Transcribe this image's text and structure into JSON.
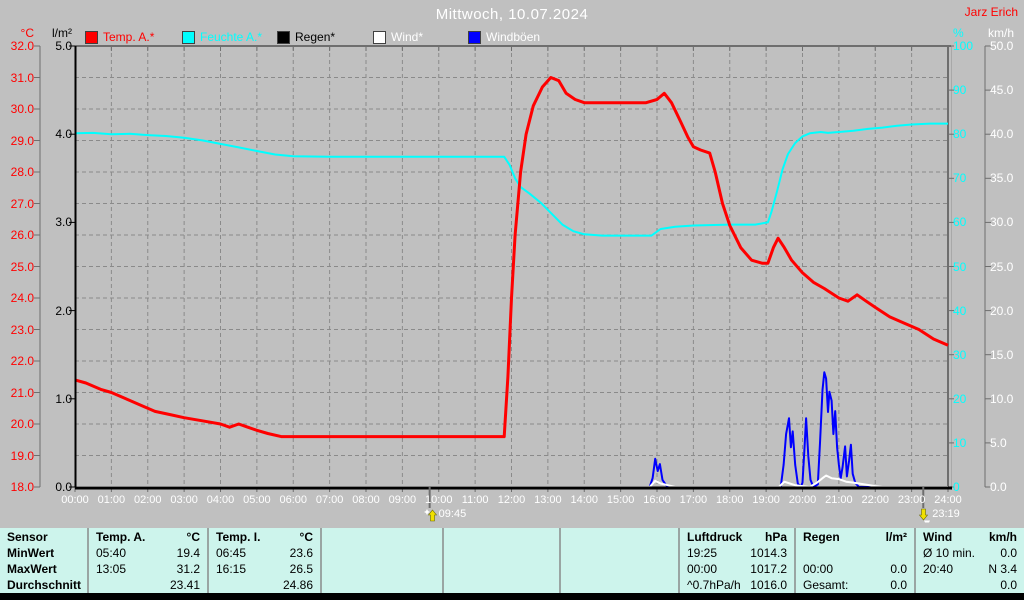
{
  "header": {
    "title": "Mittwoch, 10.07.2024",
    "station": "Jarz Erich"
  },
  "colors": {
    "background": "#c0c0c0",
    "grid": "#8a8a8a",
    "axis_dark": "#000000",
    "frame_gray": "#6e6e6e",
    "x_text": "#ffffff",
    "title_text": "#ffffff",
    "station_text": "#ff0000",
    "table_bg": "#cdf4ec",
    "table_divider": "#9aa5a3"
  },
  "chart_data": {
    "type": "line",
    "title": "Mittwoch, 10.07.2024",
    "grid": "dashed, hourly vertical + 1°C horizontal",
    "x_axis": {
      "min": 0,
      "max": 24,
      "labels": [
        "00:00",
        "01:00",
        "02:00",
        "03:00",
        "04:00",
        "05:00",
        "06:00",
        "07:00",
        "08:00",
        "09:00",
        "10:00",
        "11:00",
        "12:00",
        "13:00",
        "14:00",
        "15:00",
        "16:00",
        "17:00",
        "18:00",
        "19:00",
        "20:00",
        "21:00",
        "22:00",
        "23:00",
        "24:00"
      ]
    },
    "axes": {
      "temp": {
        "unit": "°C",
        "color": "#ff0000",
        "min": 18,
        "max": 32,
        "ticks": [
          "32.0",
          "31.0",
          "30.0",
          "29.0",
          "28.0",
          "27.0",
          "26.0",
          "25.0",
          "24.0",
          "23.0",
          "22.0",
          "21.0",
          "20.0",
          "19.0",
          "18.0"
        ]
      },
      "rain": {
        "unit": "l/m²",
        "color": "#000000",
        "min": 0,
        "max": 5,
        "ticks": [
          "5.0",
          "4.0",
          "3.0",
          "2.0",
          "1.0",
          "0.0"
        ]
      },
      "humidity": {
        "unit": "%",
        "color": "#00ffff",
        "min": 0,
        "max": 100,
        "ticks": [
          "100",
          "90",
          "80",
          "70",
          "60",
          "50",
          "40",
          "30",
          "20",
          "10",
          "0"
        ]
      },
      "wind": {
        "unit": "km/h",
        "color": "#ffffff",
        "min": 0,
        "max": 50,
        "ticks": [
          "50.0",
          "45.0",
          "40.0",
          "35.0",
          "30.0",
          "25.0",
          "20.0",
          "15.0",
          "10.0",
          "5.0",
          "0.0"
        ]
      }
    },
    "legend": [
      {
        "label": "Temp. A.*",
        "swatch": "#ff0000",
        "label_color": "#ff0000"
      },
      {
        "label": "Feuchte A.*",
        "swatch": "#00ffff",
        "label_color": "#00ffff"
      },
      {
        "label": "Regen*",
        "swatch": "#000000",
        "label_color": "#000000"
      },
      {
        "label": "Wind*",
        "swatch": "#ffffff",
        "label_color": "#ffffff"
      },
      {
        "label": "Windböen",
        "swatch": "#0000ff",
        "label_color": "#ffffff"
      }
    ],
    "markers": [
      {
        "time": "09:45",
        "hour": 9.75,
        "icon": "up-arrow"
      },
      {
        "time": "23:19",
        "hour": 23.32,
        "icon": "down-arrow"
      }
    ],
    "series": [
      {
        "name": "Regen",
        "axis": "rain",
        "color": "#000000",
        "width": 1,
        "points": [
          [
            0,
            0
          ],
          [
            24,
            0
          ]
        ]
      },
      {
        "name": "Windböen",
        "axis": "wind",
        "color": "#0000ff",
        "width": 2,
        "points": [
          [
            0,
            0
          ],
          [
            15.8,
            0
          ],
          [
            15.88,
            1.0
          ],
          [
            15.95,
            3.2
          ],
          [
            16.02,
            1.8
          ],
          [
            16.08,
            2.6
          ],
          [
            16.15,
            0.8
          ],
          [
            16.25,
            0.2
          ],
          [
            16.35,
            0
          ],
          [
            19.4,
            0
          ],
          [
            19.48,
            2.5
          ],
          [
            19.55,
            6.0
          ],
          [
            19.63,
            7.8
          ],
          [
            19.68,
            4.5
          ],
          [
            19.73,
            6.3
          ],
          [
            19.8,
            2.5
          ],
          [
            19.87,
            0.4
          ],
          [
            19.95,
            0
          ],
          [
            20.0,
            0.5
          ],
          [
            20.05,
            4.0
          ],
          [
            20.1,
            7.8
          ],
          [
            20.16,
            3.5
          ],
          [
            20.22,
            0.8
          ],
          [
            20.3,
            0
          ],
          [
            20.42,
            0.3
          ],
          [
            20.48,
            5.0
          ],
          [
            20.55,
            11.0
          ],
          [
            20.6,
            13.0
          ],
          [
            20.65,
            12.3
          ],
          [
            20.7,
            8.5
          ],
          [
            20.74,
            10.8
          ],
          [
            20.8,
            9.8
          ],
          [
            20.85,
            6.0
          ],
          [
            20.9,
            8.6
          ],
          [
            20.95,
            4.5
          ],
          [
            21.0,
            2.5
          ],
          [
            21.05,
            1.0
          ],
          [
            21.1,
            2.2
          ],
          [
            21.17,
            4.6
          ],
          [
            21.22,
            1.2
          ],
          [
            21.28,
            3.0
          ],
          [
            21.33,
            4.8
          ],
          [
            21.38,
            1.5
          ],
          [
            21.45,
            0.5
          ],
          [
            21.55,
            0
          ],
          [
            24,
            0
          ]
        ]
      },
      {
        "name": "Wind",
        "axis": "wind",
        "color": "#ffffff",
        "width": 2,
        "points": [
          [
            0,
            0
          ],
          [
            15.8,
            0
          ],
          [
            15.95,
            0.7
          ],
          [
            16.1,
            0.4
          ],
          [
            16.3,
            0.2
          ],
          [
            16.5,
            0
          ],
          [
            19.35,
            0
          ],
          [
            19.5,
            0.6
          ],
          [
            19.65,
            0.4
          ],
          [
            19.8,
            0.2
          ],
          [
            20.0,
            0.1
          ],
          [
            20.2,
            0
          ],
          [
            20.4,
            0.5
          ],
          [
            20.55,
            1.0
          ],
          [
            20.65,
            1.3
          ],
          [
            20.8,
            1.0
          ],
          [
            21.0,
            0.9
          ],
          [
            21.2,
            0.6
          ],
          [
            21.4,
            0.5
          ],
          [
            21.7,
            0.3
          ],
          [
            22.0,
            0.1
          ],
          [
            22.2,
            0
          ],
          [
            24,
            0
          ]
        ]
      },
      {
        "name": "Feuchte A.",
        "axis": "humidity",
        "color": "#00ffff",
        "width": 2,
        "points": [
          [
            0,
            80.2
          ],
          [
            0.5,
            80.3
          ],
          [
            1,
            80.0
          ],
          [
            1.5,
            80.1
          ],
          [
            2,
            79.8
          ],
          [
            2.5,
            79.6
          ],
          [
            3,
            79.2
          ],
          [
            3.5,
            78.6
          ],
          [
            4,
            77.8
          ],
          [
            4.5,
            77.0
          ],
          [
            5,
            76.2
          ],
          [
            5.5,
            75.4
          ],
          [
            6,
            75.0
          ],
          [
            7,
            74.9
          ],
          [
            8,
            74.9
          ],
          [
            9,
            74.9
          ],
          [
            10,
            74.9
          ],
          [
            11,
            74.9
          ],
          [
            11.8,
            74.9
          ],
          [
            11.95,
            73.0
          ],
          [
            12.1,
            70.0
          ],
          [
            12.25,
            68.0
          ],
          [
            12.5,
            66.5
          ],
          [
            12.8,
            64.5
          ],
          [
            13.1,
            62.0
          ],
          [
            13.4,
            59.5
          ],
          [
            13.7,
            58.0
          ],
          [
            14,
            57.3
          ],
          [
            14.5,
            57.0
          ],
          [
            15,
            57.0
          ],
          [
            15.85,
            57.0
          ],
          [
            16.1,
            58.5
          ],
          [
            16.5,
            59.0
          ],
          [
            17,
            59.3
          ],
          [
            18,
            59.5
          ],
          [
            18.7,
            59.5
          ],
          [
            19.05,
            60.0
          ],
          [
            19.15,
            62.5
          ],
          [
            19.3,
            67.0
          ],
          [
            19.45,
            72.0
          ],
          [
            19.6,
            75.5
          ],
          [
            19.8,
            78.0
          ],
          [
            20,
            79.5
          ],
          [
            20.2,
            80.2
          ],
          [
            20.5,
            80.5
          ],
          [
            20.7,
            80.3
          ],
          [
            21,
            80.5
          ],
          [
            21.4,
            80.8
          ],
          [
            21.8,
            81.2
          ],
          [
            22.2,
            81.5
          ],
          [
            22.6,
            81.9
          ],
          [
            23,
            82.2
          ],
          [
            23.5,
            82.4
          ],
          [
            24,
            82.4
          ]
        ]
      },
      {
        "name": "Temp. A.",
        "axis": "temp",
        "color": "#ff0000",
        "width": 3,
        "points": [
          [
            0,
            21.4
          ],
          [
            0.3,
            21.3
          ],
          [
            0.7,
            21.1
          ],
          [
            1,
            21.0
          ],
          [
            1.4,
            20.8
          ],
          [
            1.8,
            20.6
          ],
          [
            2.2,
            20.4
          ],
          [
            2.6,
            20.3
          ],
          [
            3,
            20.2
          ],
          [
            3.5,
            20.1
          ],
          [
            4,
            20.0
          ],
          [
            4.25,
            19.9
          ],
          [
            4.5,
            20.0
          ],
          [
            4.75,
            19.9
          ],
          [
            5,
            19.8
          ],
          [
            5.3,
            19.7
          ],
          [
            5.67,
            19.6
          ],
          [
            6.5,
            19.6
          ],
          [
            8,
            19.6
          ],
          [
            10,
            19.6
          ],
          [
            11.5,
            19.6
          ],
          [
            11.8,
            19.6
          ],
          [
            11.9,
            21.5
          ],
          [
            12,
            24.0
          ],
          [
            12.1,
            26.0
          ],
          [
            12.25,
            28.0
          ],
          [
            12.4,
            29.2
          ],
          [
            12.6,
            30.1
          ],
          [
            12.85,
            30.7
          ],
          [
            13.08,
            31.0
          ],
          [
            13.3,
            30.9
          ],
          [
            13.5,
            30.5
          ],
          [
            13.75,
            30.3
          ],
          [
            14,
            30.2
          ],
          [
            15,
            30.2
          ],
          [
            15.7,
            30.2
          ],
          [
            16,
            30.3
          ],
          [
            16.2,
            30.5
          ],
          [
            16.4,
            30.2
          ],
          [
            16.65,
            29.6
          ],
          [
            16.85,
            29.1
          ],
          [
            17,
            28.8
          ],
          [
            17.2,
            28.7
          ],
          [
            17.45,
            28.6
          ],
          [
            17.6,
            28.0
          ],
          [
            17.8,
            27.0
          ],
          [
            18,
            26.3
          ],
          [
            18.3,
            25.6
          ],
          [
            18.6,
            25.2
          ],
          [
            18.9,
            25.1
          ],
          [
            19.05,
            25.1
          ],
          [
            19.2,
            25.6
          ],
          [
            19.33,
            25.9
          ],
          [
            19.5,
            25.6
          ],
          [
            19.7,
            25.2
          ],
          [
            20,
            24.8
          ],
          [
            20.3,
            24.5
          ],
          [
            20.6,
            24.3
          ],
          [
            21,
            24.0
          ],
          [
            21.25,
            23.9
          ],
          [
            21.5,
            24.1
          ],
          [
            21.75,
            23.9
          ],
          [
            22,
            23.7
          ],
          [
            22.4,
            23.4
          ],
          [
            22.8,
            23.2
          ],
          [
            23.2,
            23.0
          ],
          [
            23.6,
            22.7
          ],
          [
            24,
            22.5
          ]
        ]
      }
    ]
  },
  "table": {
    "row_labels": [
      "Sensor",
      "MinWert",
      "MaxWert",
      "Durchschnitt"
    ],
    "columns": [
      {
        "name": "Temp. A.",
        "unit": "°C",
        "rows": [
          [
            "05:40",
            "19.4"
          ],
          [
            "13:05",
            "31.2"
          ],
          [
            "",
            "23.41"
          ]
        ]
      },
      {
        "name": "Temp. I.",
        "unit": "°C",
        "rows": [
          [
            "06:45",
            "23.6"
          ],
          [
            "16:15",
            "26.5"
          ],
          [
            "",
            "24.86"
          ]
        ]
      },
      {
        "name": "",
        "unit": "",
        "rows": [
          [
            "",
            ""
          ],
          [
            "",
            ""
          ],
          [
            "",
            ""
          ]
        ]
      },
      {
        "name": "",
        "unit": "",
        "rows": [
          [
            "",
            ""
          ],
          [
            "",
            ""
          ],
          [
            "",
            ""
          ]
        ]
      },
      {
        "name": "",
        "unit": "",
        "rows": [
          [
            "",
            ""
          ],
          [
            "",
            ""
          ],
          [
            "",
            ""
          ]
        ]
      },
      {
        "name": "Luftdruck",
        "unit": "hPa",
        "rows": [
          [
            "19:25",
            "1014.3"
          ],
          [
            "00:00",
            "1017.2"
          ],
          [
            "^0.7hPa/h",
            "1016.0"
          ]
        ]
      },
      {
        "name": "Regen",
        "unit": "l/m²",
        "rows": [
          [
            "",
            ""
          ],
          [
            "00:00",
            "0.0"
          ],
          [
            "Gesamt:",
            "0.0"
          ]
        ]
      },
      {
        "name": "Wind",
        "unit": "km/h",
        "rows": [
          [
            "Ø 10 min.",
            "0.0"
          ],
          [
            "20:40",
            "N 3.4"
          ],
          [
            "",
            "0.0"
          ]
        ]
      }
    ]
  }
}
